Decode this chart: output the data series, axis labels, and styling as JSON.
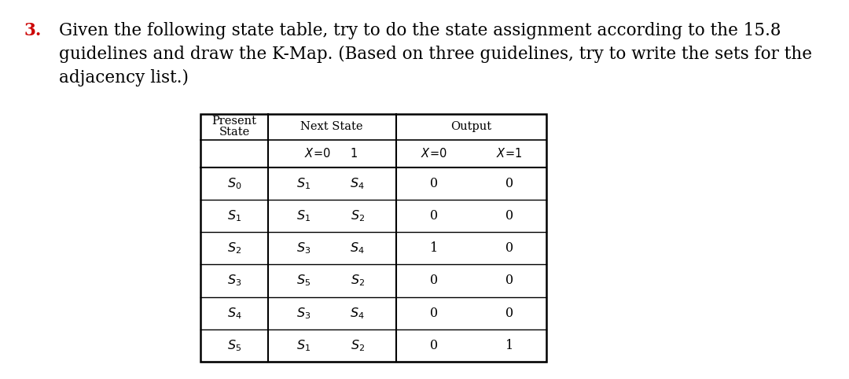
{
  "bg_color": "#ffffff",
  "question_number": "3.",
  "question_color": "#cc0000",
  "text_color": "#000000",
  "text_lines": [
    "Given the following state table, try to do the state assignment according to the 15.8",
    "guidelines and draw the K-Map. (Based on three guidelines, try to write the sets for the",
    "adjacency list.)"
  ],
  "ps_labels": [
    "0",
    "1",
    "2",
    "3",
    "4",
    "5"
  ],
  "ns_x0_subs": [
    "1",
    "1",
    "3",
    "5",
    "3",
    "1"
  ],
  "ns_x1_subs": [
    "4",
    "2",
    "4",
    "2",
    "4",
    "2"
  ],
  "out_x0_vals": [
    "0",
    "0",
    "1",
    "0",
    "0",
    "0"
  ],
  "out_x1_vals": [
    "0",
    "0",
    "0",
    "0",
    "0",
    "1"
  ]
}
